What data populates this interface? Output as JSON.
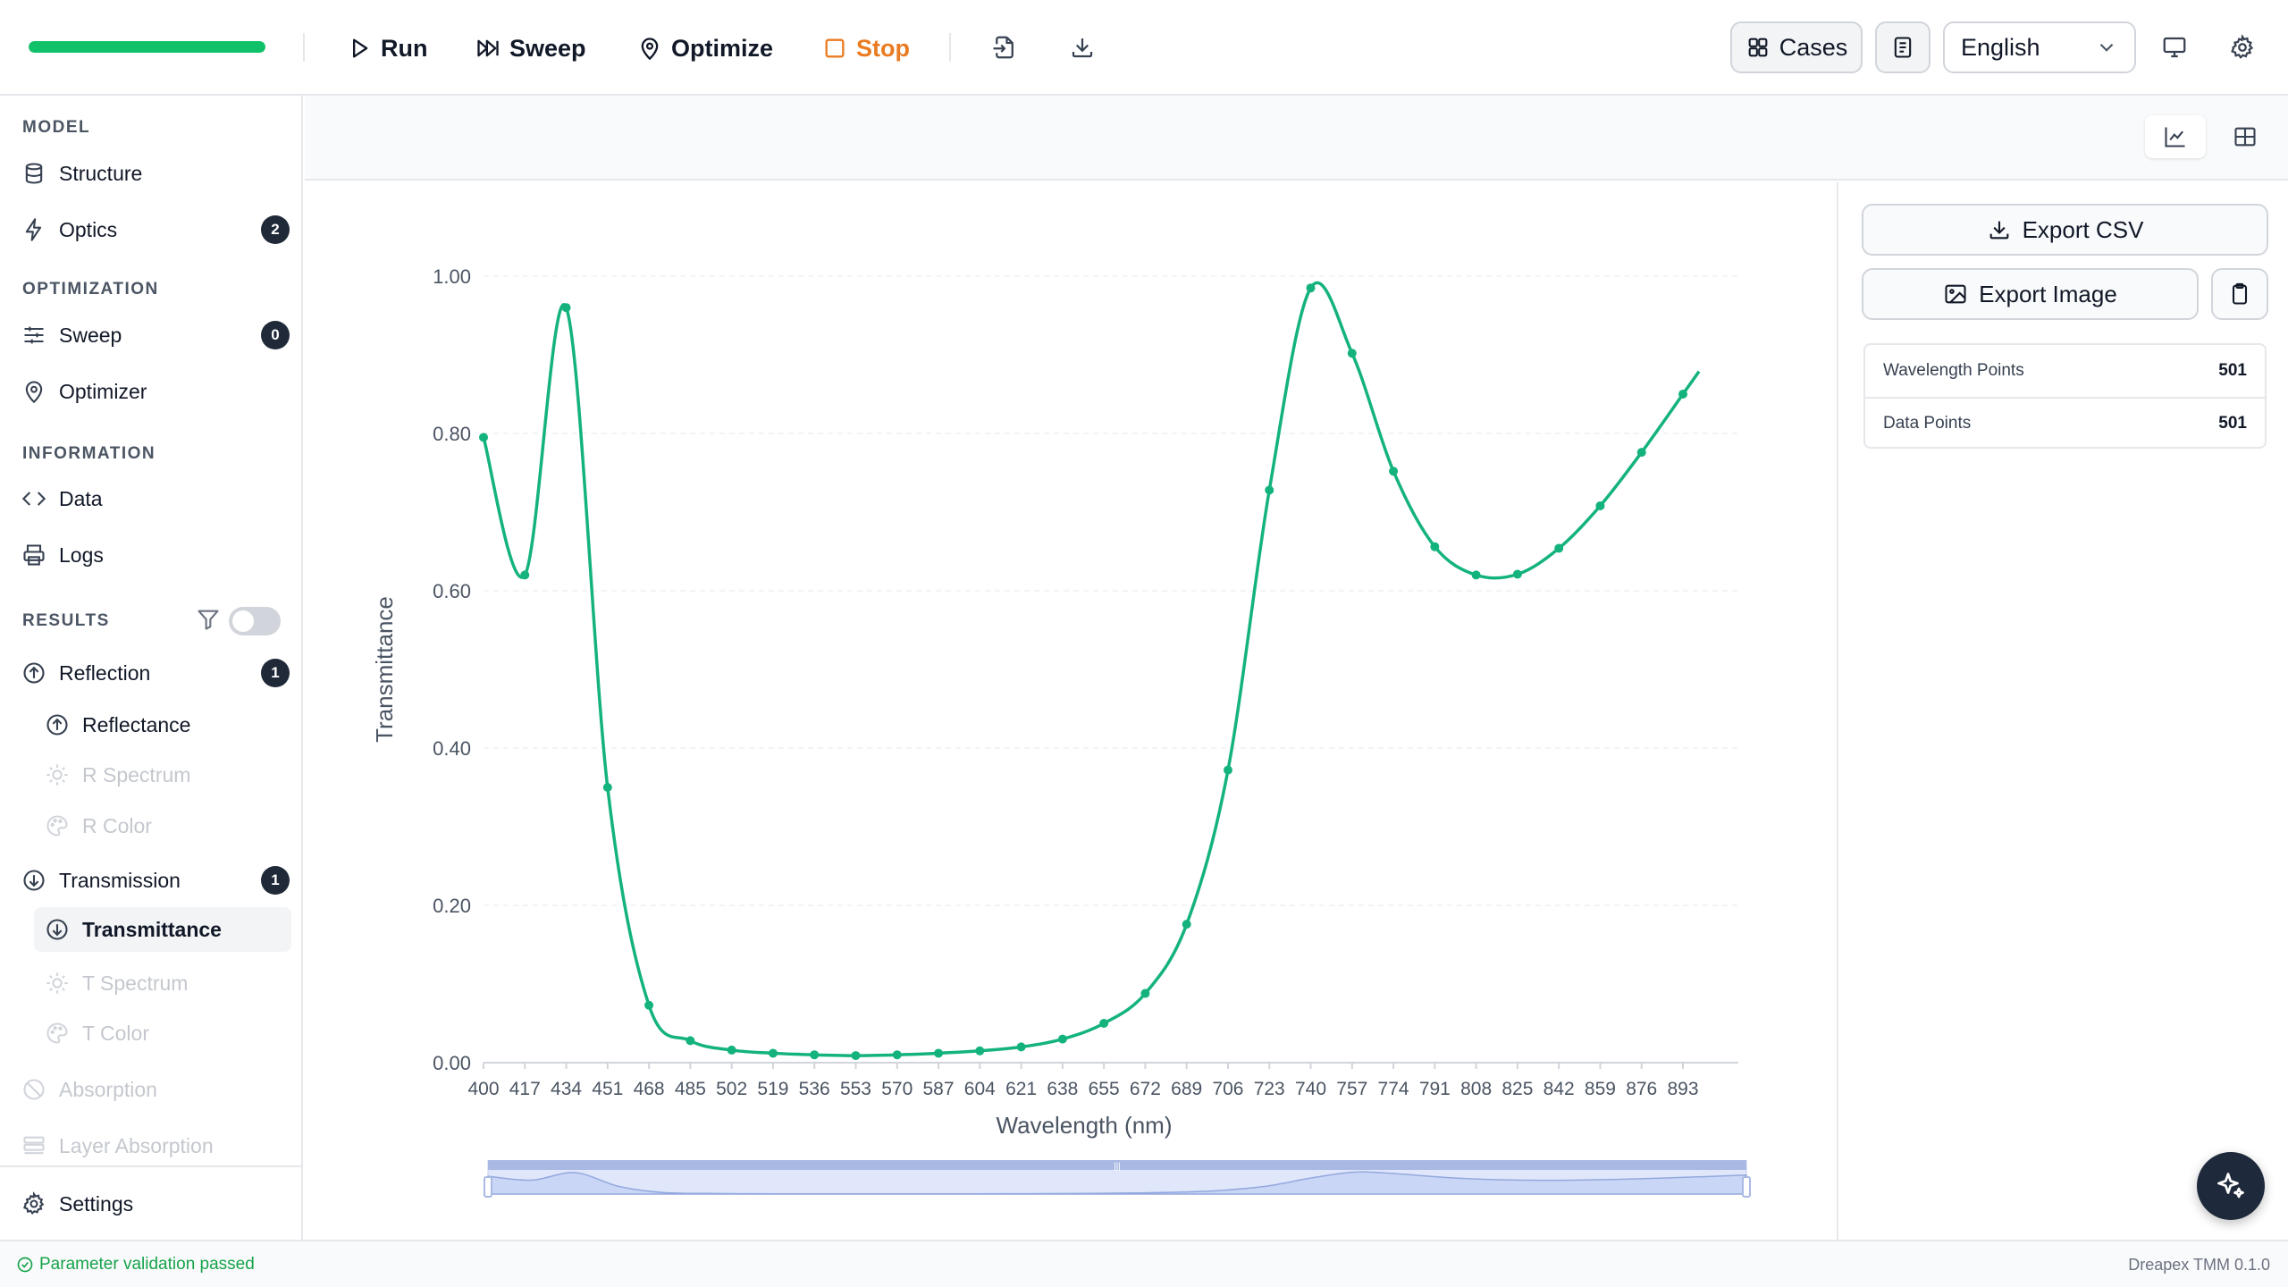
{
  "toolbar": {
    "progress_fraction": 1.0,
    "run_label": "Run",
    "sweep_label": "Sweep",
    "optimize_label": "Optimize",
    "stop_label": "Stop",
    "cases_label": "Cases",
    "language": "English",
    "colors": {
      "progress": "#0fc26a",
      "stop": "#ea7b22"
    }
  },
  "sidebar": {
    "model_heading": "MODEL",
    "structure_label": "Structure",
    "optics_label": "Optics",
    "optics_badge": "2",
    "optimization_heading": "OPTIMIZATION",
    "sweep_label": "Sweep",
    "sweep_badge": "0",
    "optimizer_label": "Optimizer",
    "information_heading": "INFORMATION",
    "data_label": "Data",
    "logs_label": "Logs",
    "results_heading": "RESULTS",
    "reflection_label": "Reflection",
    "reflection_badge": "1",
    "reflectance_label": "Reflectance",
    "r_spectrum_label": "R Spectrum",
    "r_color_label": "R Color",
    "transmission_label": "Transmission",
    "transmission_badge": "1",
    "transmittance_label": "Transmittance",
    "t_spectrum_label": "T Spectrum",
    "t_color_label": "T Color",
    "absorption_label": "Absorption",
    "layer_absorption_label": "Layer Absorption",
    "settings_label": "Settings"
  },
  "panel": {
    "export_csv_label": "Export CSV",
    "export_image_label": "Export Image",
    "stats": [
      {
        "label": "Wavelength Points",
        "value": "501"
      },
      {
        "label": "Data Points",
        "value": "501"
      }
    ]
  },
  "status": {
    "message": "Parameter validation passed",
    "version": "Dreapex TMM 0.1.0"
  },
  "chart_data": {
    "type": "line",
    "title": "",
    "xlabel": "Wavelength (nm)",
    "ylabel": "Transmittance",
    "xlim": [
      400,
      900
    ],
    "ylim": [
      0,
      1
    ],
    "x_ticks": [
      "400",
      "417",
      "434",
      "451",
      "468",
      "485",
      "502",
      "519",
      "536",
      "553",
      "570",
      "587",
      "604",
      "621",
      "638",
      "655",
      "672",
      "689",
      "706",
      "723",
      "740",
      "757",
      "774",
      "791",
      "808",
      "825",
      "842",
      "859",
      "876",
      "893"
    ],
    "y_ticks": [
      "0.00",
      "0.20",
      "0.40",
      "0.60",
      "0.80",
      "1.00"
    ],
    "grid": true,
    "legend": "none",
    "color": "#14b37d",
    "series": [
      {
        "x": [
          400,
          417,
          434,
          451,
          468,
          485,
          502,
          519,
          536,
          553,
          570,
          587,
          604,
          621,
          638,
          655,
          672,
          689,
          706,
          723,
          740,
          757,
          774,
          791,
          808,
          825,
          842,
          859,
          876,
          893
        ],
        "values": [
          0.795,
          0.62,
          0.96,
          0.35,
          0.073,
          0.028,
          0.016,
          0.012,
          0.01,
          0.009,
          0.01,
          0.012,
          0.015,
          0.02,
          0.03,
          0.05,
          0.088,
          0.176,
          0.372,
          0.728,
          0.985,
          0.902,
          0.752,
          0.656,
          0.62,
          0.621,
          0.654,
          0.708,
          0.776,
          0.85
        ]
      }
    ]
  }
}
